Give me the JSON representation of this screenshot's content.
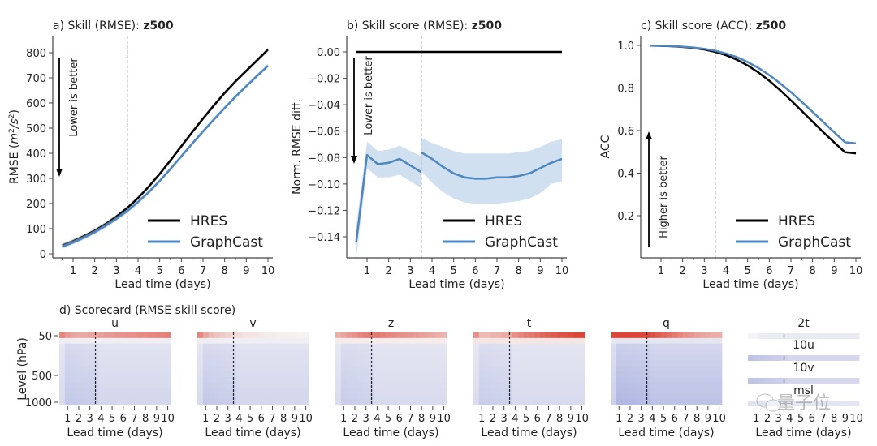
{
  "chart_data": [
    {
      "id": "a",
      "type": "line",
      "title_prefix": "a) Skill (RMSE): ",
      "title_bold": "z500",
      "xlabel": "Lead time (days)",
      "ylabel": "RMSE (m²/s²)",
      "xlim": [
        0.5,
        10
      ],
      "ylim": [
        0,
        800
      ],
      "xticks": [
        1,
        2,
        3,
        4,
        5,
        6,
        7,
        8,
        9,
        10
      ],
      "yticks": [
        0,
        100,
        200,
        300,
        400,
        500,
        600,
        700,
        800
      ],
      "ytick_labels": [
        "0",
        "100",
        "200",
        "300",
        "400",
        "500",
        "600",
        "700",
        "800"
      ],
      "vline_x": 3.5,
      "annotation": {
        "text": "Lower is better",
        "direction": "down"
      },
      "legend": {
        "position": "bottom-right",
        "entries": [
          "HRES",
          "GraphCast"
        ]
      },
      "x": [
        0.5,
        1,
        1.5,
        2,
        2.5,
        3,
        3.5,
        4,
        4.5,
        5,
        5.5,
        6,
        6.5,
        7,
        7.5,
        8,
        8.5,
        9,
        9.5,
        10
      ],
      "series": [
        {
          "name": "HRES",
          "color": "#000000",
          "values": [
            33,
            50,
            70,
            92,
            118,
            148,
            182,
            222,
            268,
            318,
            372,
            428,
            484,
            538,
            590,
            640,
            686,
            728,
            770,
            812
          ],
          "band": 8
        },
        {
          "name": "GraphCast",
          "color": "#4e86c0",
          "values": [
            28,
            45,
            64,
            86,
            111,
            139,
            170,
            206,
            246,
            290,
            338,
            388,
            438,
            487,
            534,
            580,
            625,
            667,
            708,
            748
          ],
          "band": 8
        }
      ]
    },
    {
      "id": "b",
      "type": "line",
      "title_prefix": "b) Skill score (RMSE): ",
      "title_bold": "z500",
      "xlabel": "Lead time (days)",
      "ylabel": "Norm. RMSE diff.",
      "xlim": [
        0.5,
        10
      ],
      "ylim": [
        -0.155,
        0.012
      ],
      "xticks": [
        1,
        2,
        3,
        4,
        5,
        6,
        7,
        8,
        9,
        10
      ],
      "yticks": [
        0,
        -0.02,
        -0.04,
        -0.06,
        -0.08,
        -0.1,
        -0.12,
        -0.14
      ],
      "ytick_labels": [
        "0.00",
        "−0.02",
        "−0.04",
        "−0.06",
        "−0.08",
        "−0.10",
        "−0.12",
        "−0.14"
      ],
      "vline_x": 3.5,
      "annotation": {
        "text": "Lower is better",
        "direction": "down"
      },
      "legend": {
        "position": "bottom-right",
        "entries": [
          "HRES",
          "GraphCast"
        ]
      },
      "x": [
        0.5,
        1,
        1.5,
        2,
        2.5,
        3,
        3.5,
        3.5,
        4,
        4.5,
        5,
        5.5,
        6,
        6.5,
        7,
        7.5,
        8,
        8.5,
        9,
        9.5,
        10
      ],
      "series": [
        {
          "name": "HRES",
          "color": "#000000",
          "values": [
            0,
            0,
            0,
            0,
            0,
            0,
            0,
            0,
            0,
            0,
            0,
            0,
            0,
            0,
            0,
            0,
            0,
            0,
            0,
            0,
            0
          ]
        },
        {
          "name": "GraphCast",
          "color": "#4e86c0",
          "values": [
            -0.144,
            -0.078,
            -0.085,
            -0.084,
            -0.081,
            -0.086,
            -0.091,
            -0.076,
            -0.081,
            -0.087,
            -0.092,
            -0.095,
            -0.096,
            -0.096,
            -0.095,
            -0.095,
            -0.094,
            -0.092,
            -0.088,
            -0.084,
            -0.081
          ],
          "lower": [
            -0.156,
            -0.088,
            -0.095,
            -0.095,
            -0.093,
            -0.098,
            -0.103,
            -0.09,
            -0.099,
            -0.106,
            -0.111,
            -0.114,
            -0.115,
            -0.115,
            -0.115,
            -0.114,
            -0.113,
            -0.111,
            -0.107,
            -0.1,
            -0.098
          ],
          "upper": [
            -0.132,
            -0.068,
            -0.075,
            -0.074,
            -0.071,
            -0.075,
            -0.079,
            -0.065,
            -0.069,
            -0.072,
            -0.075,
            -0.077,
            -0.077,
            -0.077,
            -0.077,
            -0.077,
            -0.076,
            -0.075,
            -0.072,
            -0.068,
            -0.066
          ]
        }
      ]
    },
    {
      "id": "c",
      "type": "line",
      "title_prefix": "c) Skill score (ACC): ",
      "title_bold": "z500",
      "xlabel": "Lead time (days)",
      "ylabel": "ACC",
      "xlim": [
        0.5,
        10
      ],
      "ylim": [
        0.0,
        1.04
      ],
      "xticks": [
        1,
        2,
        3,
        4,
        5,
        6,
        7,
        8,
        9,
        10
      ],
      "yticks": [
        0.2,
        0.4,
        0.6,
        0.8,
        1.0
      ],
      "ytick_labels": [
        "0.2",
        "0.4",
        "0.6",
        "0.8",
        "1.0"
      ],
      "vline_x": 3.5,
      "annotation": {
        "text": "Higher is better",
        "direction": "up"
      },
      "legend": {
        "position": "bottom-right",
        "entries": [
          "HRES",
          "GraphCast"
        ]
      },
      "x": [
        0.5,
        1,
        1.5,
        2,
        2.5,
        3,
        3.5,
        4,
        4.5,
        5,
        5.5,
        6,
        6.5,
        7,
        7.5,
        8,
        8.5,
        9,
        9.5,
        10
      ],
      "series": [
        {
          "name": "HRES",
          "color": "#000000",
          "values": [
            0.999,
            0.998,
            0.996,
            0.993,
            0.988,
            0.981,
            0.97,
            0.954,
            0.933,
            0.906,
            0.873,
            0.834,
            0.79,
            0.742,
            0.692,
            0.642,
            0.592,
            0.544,
            0.498,
            0.493
          ]
        },
        {
          "name": "GraphCast",
          "color": "#4e86c0",
          "values": [
            0.999,
            0.998,
            0.997,
            0.994,
            0.99,
            0.984,
            0.975,
            0.962,
            0.945,
            0.922,
            0.894,
            0.861,
            0.822,
            0.78,
            0.735,
            0.688,
            0.64,
            0.592,
            0.545,
            0.54
          ]
        }
      ]
    }
  ],
  "scorecard": {
    "title": "d) Scorecard (RMSE skill score)",
    "ylabel": "Level (hPa)",
    "xlabel": "Lead time (days)",
    "level_tick_labels": [
      "50",
      "500",
      "1000"
    ],
    "xtick_labels": [
      "1",
      "2",
      "3",
      "4",
      "5",
      "6",
      "7",
      "8",
      "9",
      "10"
    ],
    "vline_x": 3.5,
    "colormap": {
      "negative": "#3b4cc0",
      "neutral": "#f7f7f7",
      "positive": "#d62718"
    },
    "panels": [
      {
        "name": "u",
        "top_row": [
          0.55,
          0.45,
          0.4,
          0.38,
          0.38,
          0.4,
          0.4,
          0.42,
          0.45,
          0.45,
          0.47,
          0.48,
          0.5,
          0.5,
          0.52,
          0.52,
          0.54,
          0.55,
          0.56,
          0.57
        ],
        "second_row": -0.05,
        "near": -0.22,
        "far": -0.12
      },
      {
        "name": "v",
        "top_row": [
          0.55,
          0.4,
          0.3,
          0.25,
          0.22,
          0.18,
          0.15,
          0.12,
          0.1,
          0.09,
          0.08,
          0.07,
          0.06,
          0.05,
          0.04,
          0.04,
          0.03,
          0.03,
          0.02,
          0.02
        ],
        "second_row": -0.05,
        "near": -0.22,
        "far": -0.12
      },
      {
        "name": "z",
        "top_row": [
          0.35,
          0.4,
          0.45,
          0.5,
          0.55,
          0.58,
          0.6,
          0.6,
          0.58,
          0.55,
          0.52,
          0.5,
          0.48,
          0.46,
          0.44,
          0.42,
          0.4,
          0.38,
          0.35,
          0.32
        ],
        "second_row": 0.05,
        "near": -0.2,
        "far": -0.1
      },
      {
        "name": "t",
        "top_row": [
          0.5,
          0.3,
          0.3,
          0.32,
          0.34,
          0.36,
          0.38,
          0.5,
          0.55,
          0.6,
          0.62,
          0.65,
          0.7,
          0.72,
          0.75,
          0.78,
          0.8,
          0.82,
          0.85,
          0.85
        ],
        "second_row": 0.08,
        "near": -0.2,
        "far": -0.1
      },
      {
        "name": "q",
        "top_row": [
          0.85,
          0.86,
          0.86,
          0.86,
          0.86,
          0.86,
          0.85,
          0.8,
          0.75,
          0.7,
          0.65,
          0.6,
          0.55,
          0.5,
          0.46,
          0.42,
          0.4,
          0.38,
          0.36,
          0.35
        ],
        "second_row": -0.1,
        "near": -0.3,
        "far": -0.22
      }
    ],
    "surface": [
      {
        "name": "2t",
        "near": -0.06,
        "far": -0.08
      },
      {
        "name": "10u",
        "near": -0.3,
        "far": -0.15
      },
      {
        "name": "10v",
        "near": -0.3,
        "far": -0.15
      },
      {
        "name": "msl",
        "near": -0.12,
        "far": -0.1
      }
    ]
  },
  "watermark": "量子位"
}
